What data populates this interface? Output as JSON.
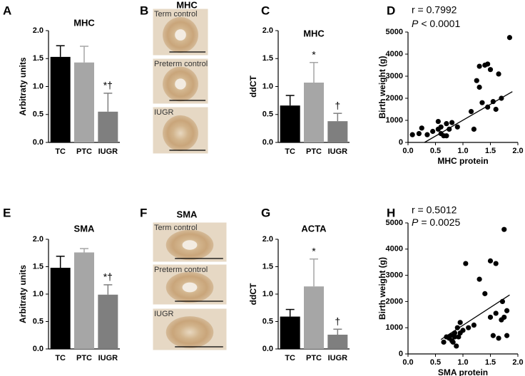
{
  "chart_data": [
    {
      "type": "bar",
      "panel": "A",
      "title": "MHC",
      "ylabel": "Arbitraty units",
      "categories": [
        "TC",
        "PTC",
        "IUGR"
      ],
      "values": [
        1.53,
        1.43,
        0.55
      ],
      "errors": [
        0.2,
        0.29,
        0.33
      ],
      "colors": [
        "#000000",
        "#a6a6a6",
        "#7f7f7f"
      ],
      "annotations": [
        null,
        null,
        "*†"
      ],
      "ylim": [
        0,
        2
      ],
      "yticks": [
        {
          "value": 0,
          "label": "0.0"
        },
        0.5,
        {
          "value": 1,
          "label": "1.0"
        },
        1.5,
        {
          "value": 2,
          "label": "2.0"
        }
      ]
    },
    {
      "type": "bar",
      "panel": "C",
      "title": "MHC",
      "ylabel": "ddCT",
      "categories": [
        "TC",
        "PTC",
        "IUGR"
      ],
      "values": [
        0.66,
        1.07,
        0.38
      ],
      "errors": [
        0.18,
        0.36,
        0.14
      ],
      "colors": [
        "#000000",
        "#a6a6a6",
        "#7f7f7f"
      ],
      "annotations": [
        null,
        "*",
        "†"
      ],
      "ylim": [
        0,
        2
      ],
      "yticks": [
        {
          "value": 0,
          "label": "0.0"
        },
        0.5,
        {
          "value": 1,
          "label": "1.0"
        },
        1.5,
        {
          "value": 2,
          "label": "2.0"
        }
      ]
    },
    {
      "type": "scatter",
      "panel": "D",
      "xlabel": "MHC protein",
      "ylabel": "Birth weight (g)",
      "r_text": "r = 0.7992",
      "p_symbol": "P",
      "p_text": "< 0.0001",
      "color": "#000000",
      "x": [
        0.08,
        0.2,
        0.25,
        0.35,
        0.45,
        0.55,
        0.55,
        0.6,
        0.65,
        0.6,
        0.7,
        0.7,
        0.75,
        0.8,
        0.9,
        1.15,
        1.2,
        1.25,
        1.3,
        1.3,
        1.35,
        1.4,
        1.45,
        1.45,
        1.5,
        1.55,
        1.6,
        1.65,
        1.7,
        1.85
      ],
      "y": [
        350,
        400,
        650,
        350,
        500,
        600,
        950,
        400,
        300,
        700,
        850,
        300,
        600,
        900,
        700,
        1400,
        600,
        2800,
        2500,
        3450,
        1800,
        3500,
        3550,
        1600,
        3300,
        1850,
        1500,
        3100,
        2000,
        4750
      ],
      "fit": {
        "x": [
          0.3,
          1.9
        ],
        "y": [
          0,
          2300
        ]
      },
      "xlim": [
        0,
        2
      ],
      "xticks": [
        {
          "value": 0,
          "label": "0.0"
        },
        0.5,
        {
          "value": 1,
          "label": "1.0"
        },
        1.5,
        {
          "value": 2,
          "label": "2.0"
        }
      ],
      "ylim": [
        0,
        5000
      ],
      "yticks": [
        0,
        1000,
        2000,
        3000,
        4000,
        5000
      ]
    },
    {
      "type": "bar",
      "panel": "E",
      "title": "SMA",
      "ylabel": "Arbitraty units",
      "categories": [
        "TC",
        "PTC",
        "IUGR"
      ],
      "values": [
        1.48,
        1.76,
        0.99
      ],
      "errors": [
        0.21,
        0.07,
        0.18
      ],
      "colors": [
        "#000000",
        "#a6a6a6",
        "#7f7f7f"
      ],
      "annotations": [
        null,
        null,
        "*†"
      ],
      "ylim": [
        0,
        2
      ],
      "yticks": [
        {
          "value": 0,
          "label": "0.0"
        },
        0.5,
        {
          "value": 1,
          "label": "1.0"
        },
        1.5,
        {
          "value": 2,
          "label": "2.0"
        }
      ]
    },
    {
      "type": "bar",
      "panel": "G",
      "title": "ACTA",
      "ylabel": "ddCT",
      "categories": [
        "TC",
        "PTC",
        "IUGR"
      ],
      "values": [
        0.59,
        1.14,
        0.26
      ],
      "errors": [
        0.13,
        0.5,
        0.1
      ],
      "colors": [
        "#000000",
        "#a6a6a6",
        "#7f7f7f"
      ],
      "annotations": [
        null,
        "*",
        "†"
      ],
      "ylim": [
        0,
        2
      ],
      "yticks": [
        {
          "value": 0,
          "label": "0.0"
        },
        0.5,
        {
          "value": 1,
          "label": "1.0"
        },
        1.5,
        {
          "value": 2,
          "label": "2.0"
        }
      ]
    },
    {
      "type": "scatter",
      "panel": "H",
      "xlabel": "SMA protein",
      "ylabel": "Birth weight (g)",
      "r_text": "r = 0.5012",
      "p_symbol": "P",
      "p_text": "= 0.0025",
      "color": "#000000",
      "x": [
        0.65,
        0.7,
        0.75,
        0.78,
        0.8,
        0.82,
        0.85,
        0.85,
        0.88,
        0.9,
        0.92,
        0.95,
        0.95,
        1.0,
        1.05,
        1.1,
        1.2,
        1.3,
        1.4,
        1.5,
        1.5,
        1.55,
        1.6,
        1.6,
        1.65,
        1.7,
        1.72,
        1.75,
        1.75,
        1.8,
        1.8
      ],
      "y": [
        450,
        650,
        600,
        700,
        500,
        450,
        800,
        650,
        300,
        1000,
        650,
        800,
        1200,
        900,
        3450,
        1000,
        1100,
        2850,
        2300,
        3550,
        1400,
        700,
        1550,
        3450,
        600,
        1300,
        2000,
        4750,
        1400,
        700,
        1650
      ],
      "fit": {
        "x": [
          0.6,
          1.85
        ],
        "y": [
          550,
          2250
        ]
      },
      "xlim": [
        0,
        2
      ],
      "xticks": [
        {
          "value": 0,
          "label": "0.0"
        },
        0.5,
        {
          "value": 1,
          "label": "1.0"
        },
        1.5,
        {
          "value": 2,
          "label": "2.0"
        }
      ],
      "ylim": [
        0,
        5000
      ],
      "yticks": [
        0,
        1000,
        2000,
        3000,
        4000,
        5000
      ]
    }
  ],
  "image_panels": [
    {
      "panel": "B",
      "title": "MHC",
      "images": [
        "Term control",
        "Preterm control",
        "IUGR"
      ]
    },
    {
      "panel": "F",
      "title": "SMA",
      "images": [
        "Term control",
        "Preterm control",
        "IUGR"
      ]
    }
  ]
}
